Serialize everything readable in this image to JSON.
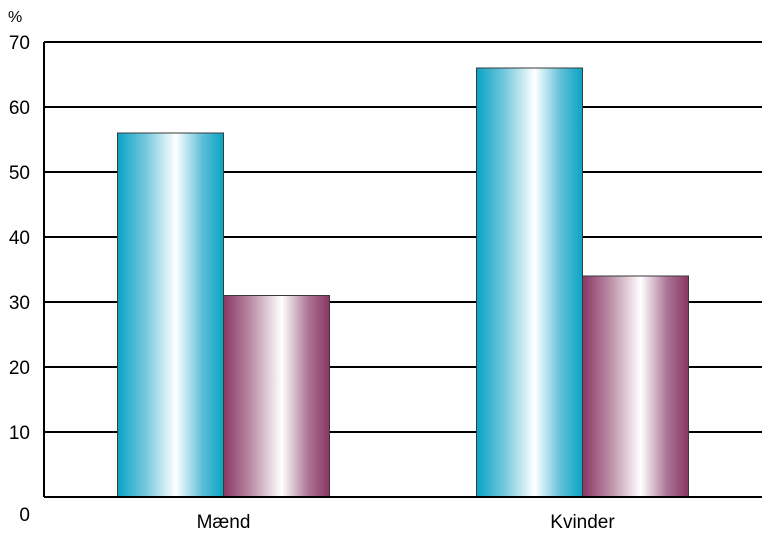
{
  "chart_data": {
    "type": "bar",
    "title": "",
    "xlabel": "",
    "ylabel": "%",
    "ylim": [
      0,
      70
    ],
    "yticks": [
      0,
      10,
      20,
      30,
      40,
      50,
      60,
      70
    ],
    "grid": true,
    "categories": [
      "Mænd",
      "Kvinder"
    ],
    "series": [
      {
        "values": [
          56,
          66
        ],
        "color": "#19a8c8"
      },
      {
        "values": [
          31,
          34
        ],
        "color": "#8c3a66"
      }
    ]
  }
}
